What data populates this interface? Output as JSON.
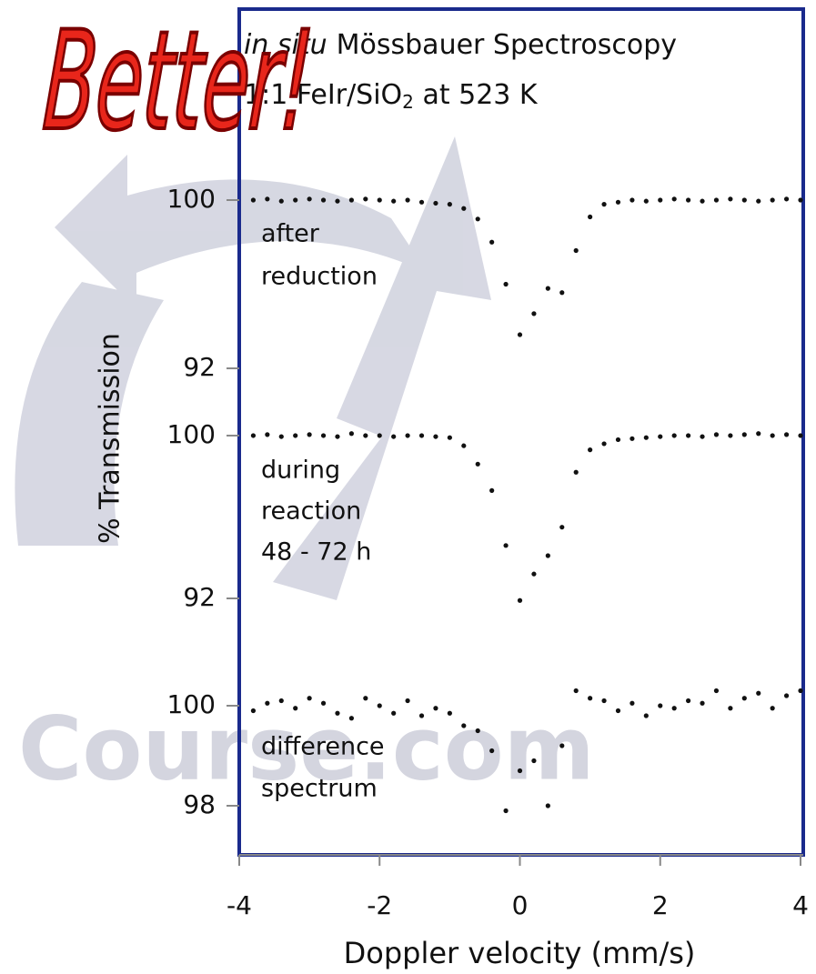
{
  "chart_data": {
    "type": "scatter",
    "title_italic": "in situ",
    "title": "Mössbauer Spectroscopy",
    "subtitle_parts": [
      "1:1 FeIr/SiO",
      "2",
      " at 523 K"
    ],
    "x_label": "Doppler velocity (mm/s)",
    "y_label": "% Transmission",
    "annotation": "Better!",
    "watermark": "Course.com",
    "xlim": [
      -4,
      4
    ],
    "xticks": [
      -4,
      -2,
      0,
      2,
      4
    ],
    "color": "#111111",
    "x": [
      -3.8,
      -3.6,
      -3.4,
      -3.2,
      -3.0,
      -2.8,
      -2.6,
      -2.4,
      -2.2,
      -2.0,
      -1.8,
      -1.6,
      -1.4,
      -1.2,
      -1.0,
      -0.8,
      -0.6,
      -0.4,
      -0.2,
      0.0,
      0.2,
      0.4,
      0.6,
      0.8,
      1.0,
      1.2,
      1.4,
      1.6,
      1.8,
      2.0,
      2.2,
      2.4,
      2.6,
      2.8,
      3.0,
      3.2,
      3.4,
      3.6,
      3.8,
      4.0
    ],
    "panels": [
      {
        "label": [
          "after",
          "reduction"
        ],
        "ylim": [
          91.5,
          101.5
        ],
        "yticks": [
          100,
          92
        ],
        "values": [
          100,
          100.05,
          99.95,
          100,
          100.05,
          100,
          99.95,
          100,
          100.05,
          100,
          99.95,
          100,
          99.9,
          99.85,
          99.8,
          99.6,
          99.1,
          98.0,
          96.0,
          93.6,
          94.6,
          95.8,
          95.6,
          97.6,
          99.2,
          99.8,
          99.9,
          100,
          99.95,
          100,
          100.05,
          100,
          99.95,
          100,
          100.05,
          100,
          99.95,
          100,
          100.05,
          100
        ]
      },
      {
        "label": [
          "during",
          "reaction",
          "48 - 72 h"
        ],
        "ylim": [
          91.5,
          101.5
        ],
        "yticks": [
          100,
          92
        ],
        "values": [
          100,
          100.05,
          99.95,
          100,
          100.05,
          100,
          99.95,
          100.1,
          100,
          100,
          99.95,
          100,
          100,
          99.95,
          99.9,
          99.5,
          98.6,
          97.3,
          94.6,
          91.9,
          93.2,
          94.1,
          95.5,
          98.2,
          99.3,
          99.6,
          99.8,
          99.85,
          99.9,
          99.95,
          100,
          100,
          99.95,
          100.05,
          100,
          100.05,
          100.1,
          100,
          100.05,
          100
        ]
      },
      {
        "label": [
          "difference",
          "spectrum"
        ],
        "ylim": [
          97.0,
          100.6
        ],
        "yticks": [
          100,
          98
        ],
        "values": [
          99.9,
          100.05,
          100.1,
          99.95,
          100.15,
          100.05,
          99.85,
          99.75,
          100.15,
          100.0,
          99.85,
          100.1,
          99.8,
          99.95,
          99.85,
          99.6,
          99.5,
          99.1,
          97.9,
          98.7,
          98.9,
          98.0,
          99.2,
          100.3,
          100.15,
          100.1,
          99.9,
          100.05,
          99.8,
          100.0,
          99.95,
          100.1,
          100.05,
          100.3,
          99.95,
          100.15,
          100.25,
          99.95,
          100.2,
          100.3
        ]
      }
    ]
  }
}
